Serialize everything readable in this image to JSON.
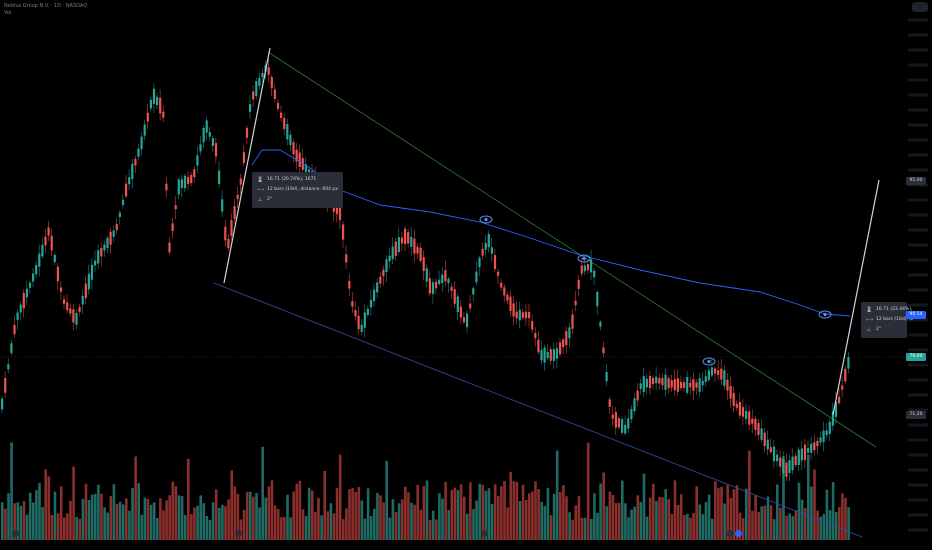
{
  "chart_data": {
    "type": "candlestick",
    "price_labels": [
      {
        "text": "95.00",
        "price": 95.0
      },
      {
        "text": "90.54",
        "price": 90.54
      },
      {
        "text": "71.20",
        "price": 71.2
      }
    ],
    "current_price": {
      "text": "79.04",
      "price": 79.04
    },
    "measure_tooltips": [
      {
        "line1": "16.71 (20.74%), 1671",
        "line2": "12 bars (19d), distance: 604 px",
        "line3": "2°"
      },
      {
        "line1": "16.71 (23.44%),",
        "line2": "12 bars (16d), di",
        "line3": "2°"
      }
    ],
    "colors": {
      "up": "#26a69a",
      "down": "#ef5350",
      "ma": "#2962ff",
      "channel_upper": "#2e7d32",
      "channel_lower": "#3949ab",
      "measure": "#d1d4dc",
      "tooltip_bg": "#2a2e39"
    }
  },
  "header": {
    "line1": "Nebius Group N.V. · 1D · NASDAQ",
    "line2": "Vol"
  },
  "icons": {
    "eye": "eye-icon",
    "price": "price-range-icon",
    "bars": "date-range-icon",
    "angle": "angle-icon"
  }
}
